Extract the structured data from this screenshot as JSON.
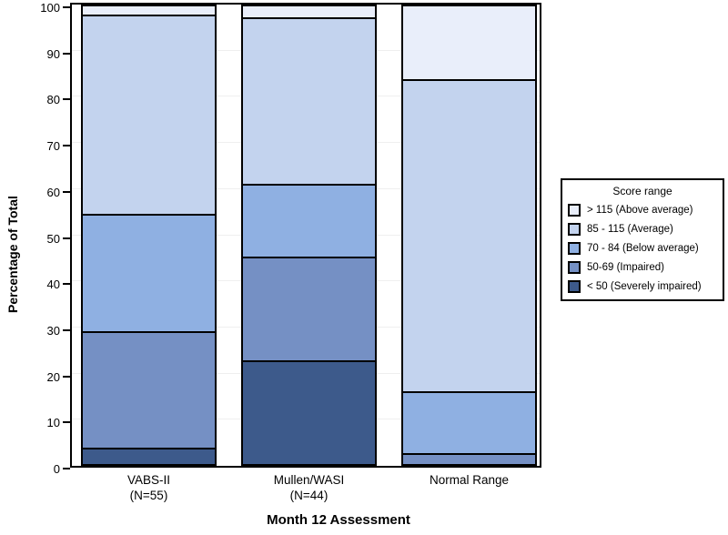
{
  "chart_data": {
    "type": "bar",
    "stacked": true,
    "orientation": "vertical",
    "title": "",
    "xlabel": "Month 12 Assessment",
    "ylabel": "Percentage of Total",
    "ylim": [
      0,
      100
    ],
    "yticks": [
      0,
      10,
      20,
      30,
      40,
      50,
      60,
      70,
      80,
      90,
      100
    ],
    "grid": "horizontal",
    "legend": {
      "title": "Score range",
      "position": "right"
    },
    "categories": [
      {
        "label": "VABS-II",
        "sublabel": "(N=55)"
      },
      {
        "label": "Mullen/WASI",
        "sublabel": "(N=44)"
      },
      {
        "label": "Normal Range",
        "sublabel": ""
      }
    ],
    "series": [
      {
        "name": "> 115 (Above average)",
        "color": "#e9eefa",
        "values": [
          1.8,
          2.3,
          15.9
        ]
      },
      {
        "name": "85 - 115 (Average)",
        "color": "#c3d3ee",
        "values": [
          43.6,
          36.4,
          68.2
        ]
      },
      {
        "name": "70 - 84 (Below average)",
        "color": "#8fb0e2",
        "values": [
          25.5,
          15.9,
          13.6
        ]
      },
      {
        "name": "50-69 (Impaired)",
        "color": "#7590c4",
        "values": [
          25.5,
          22.7,
          2.3
        ]
      },
      {
        "name": "< 50 (Severely impaired)",
        "color": "#3d5a8b",
        "values": [
          3.6,
          22.7,
          0
        ]
      }
    ]
  }
}
